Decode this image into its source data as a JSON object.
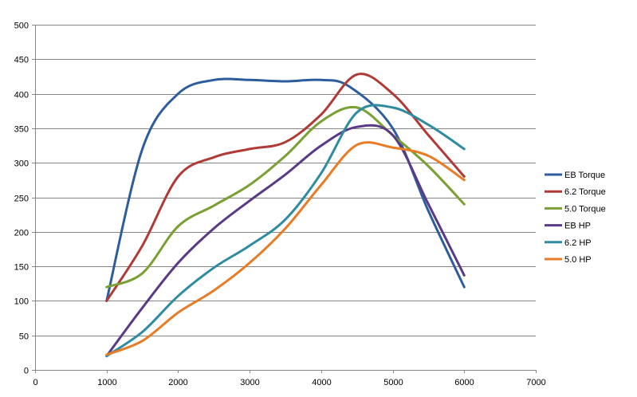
{
  "chart_data": {
    "type": "line",
    "title": "",
    "xlabel": "",
    "ylabel": "",
    "xlim": [
      0,
      7000
    ],
    "ylim": [
      0,
      500
    ],
    "x_ticks": [
      0,
      1000,
      2000,
      3000,
      4000,
      5000,
      6000,
      7000
    ],
    "y_ticks": [
      0,
      50,
      100,
      150,
      200,
      250,
      300,
      350,
      400,
      450,
      500
    ],
    "grid": "horizontal",
    "legend_position": "right",
    "smooth": true,
    "series": [
      {
        "name": "EB Torque",
        "color": "#2e5d9e",
        "points": [
          [
            1000,
            100
          ],
          [
            1500,
            320
          ],
          [
            2000,
            400
          ],
          [
            2500,
            420
          ],
          [
            3000,
            420
          ],
          [
            3500,
            418
          ],
          [
            4000,
            420
          ],
          [
            4400,
            410
          ],
          [
            5000,
            350
          ],
          [
            5500,
            230
          ],
          [
            6000,
            120
          ]
        ]
      },
      {
        "name": "6.2 Torque",
        "color": "#b03a35",
        "points": [
          [
            1000,
            100
          ],
          [
            1500,
            180
          ],
          [
            2000,
            280
          ],
          [
            2500,
            308
          ],
          [
            3000,
            320
          ],
          [
            3500,
            330
          ],
          [
            4000,
            370
          ],
          [
            4500,
            428
          ],
          [
            5000,
            400
          ],
          [
            5500,
            340
          ],
          [
            6000,
            280
          ]
        ]
      },
      {
        "name": "5.0 Torque",
        "color": "#78a032",
        "points": [
          [
            1000,
            120
          ],
          [
            1500,
            140
          ],
          [
            2000,
            208
          ],
          [
            2500,
            238
          ],
          [
            3000,
            268
          ],
          [
            3500,
            310
          ],
          [
            4000,
            360
          ],
          [
            4500,
            380
          ],
          [
            5000,
            340
          ],
          [
            5500,
            295
          ],
          [
            6000,
            240
          ]
        ]
      },
      {
        "name": "EB HP",
        "color": "#5a3a86",
        "points": [
          [
            1000,
            20
          ],
          [
            1500,
            90
          ],
          [
            2000,
            155
          ],
          [
            2500,
            205
          ],
          [
            3000,
            245
          ],
          [
            3500,
            283
          ],
          [
            4000,
            325
          ],
          [
            4500,
            352
          ],
          [
            5000,
            340
          ],
          [
            5500,
            240
          ],
          [
            6000,
            137
          ]
        ]
      },
      {
        "name": "6.2 HP",
        "color": "#2f8ca0",
        "points": [
          [
            1000,
            20
          ],
          [
            1500,
            55
          ],
          [
            2000,
            107
          ],
          [
            2500,
            148
          ],
          [
            3000,
            180
          ],
          [
            3500,
            218
          ],
          [
            4000,
            285
          ],
          [
            4500,
            373
          ],
          [
            5000,
            380
          ],
          [
            5500,
            355
          ],
          [
            6000,
            320
          ]
        ]
      },
      {
        "name": "5.0 HP",
        "color": "#e87c26",
        "points": [
          [
            1000,
            22
          ],
          [
            1500,
            42
          ],
          [
            2000,
            83
          ],
          [
            2500,
            115
          ],
          [
            3000,
            155
          ],
          [
            3500,
            205
          ],
          [
            4000,
            268
          ],
          [
            4500,
            326
          ],
          [
            5000,
            322
          ],
          [
            5500,
            310
          ],
          [
            6000,
            275
          ]
        ]
      }
    ]
  }
}
